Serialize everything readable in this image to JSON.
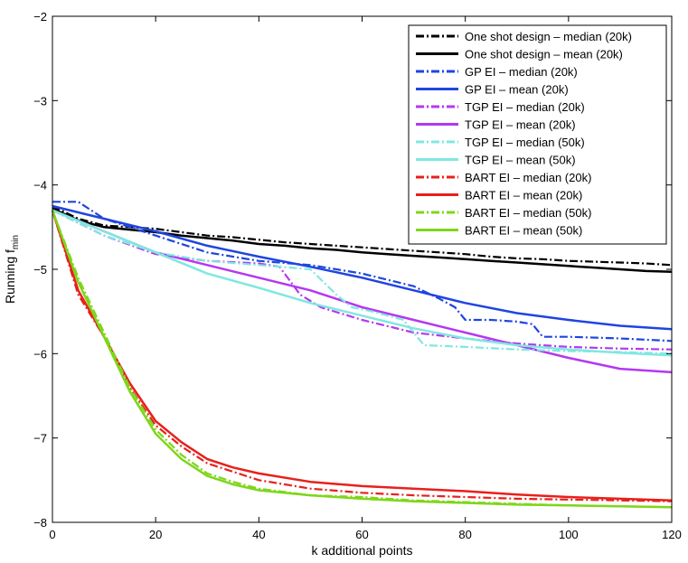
{
  "chart_data": {
    "type": "line",
    "title": "",
    "xlabel": "k additional points",
    "ylabel_main": "Running f",
    "ylabel_sub": "min",
    "xlim": [
      0,
      120
    ],
    "ylim": [
      -8,
      -2
    ],
    "xticks": [
      0,
      20,
      40,
      60,
      80,
      100,
      120
    ],
    "yticks": [
      -8,
      -7,
      -6,
      -5,
      -4,
      -3,
      -2
    ],
    "legend_position": "top-right",
    "series": [
      {
        "name": "One shot design – median (20k)",
        "color": "#000000",
        "style": "dashdot",
        "x": [
          0,
          5,
          10,
          15,
          20,
          25,
          30,
          35,
          40,
          45,
          50,
          55,
          60,
          65,
          70,
          75,
          80,
          85,
          90,
          95,
          100,
          105,
          110,
          115,
          120
        ],
        "y": [
          -4.25,
          -4.4,
          -4.48,
          -4.5,
          -4.52,
          -4.56,
          -4.6,
          -4.62,
          -4.65,
          -4.68,
          -4.7,
          -4.72,
          -4.74,
          -4.76,
          -4.78,
          -4.8,
          -4.82,
          -4.85,
          -4.87,
          -4.88,
          -4.9,
          -4.91,
          -4.92,
          -4.93,
          -4.95
        ]
      },
      {
        "name": "One shot design – mean (20k)",
        "color": "#000000",
        "style": "solid",
        "x": [
          0,
          5,
          10,
          15,
          20,
          25,
          30,
          35,
          40,
          45,
          50,
          55,
          60,
          65,
          70,
          75,
          80,
          85,
          90,
          95,
          100,
          105,
          110,
          115,
          120
        ],
        "y": [
          -4.28,
          -4.42,
          -4.5,
          -4.53,
          -4.56,
          -4.6,
          -4.63,
          -4.66,
          -4.7,
          -4.72,
          -4.75,
          -4.77,
          -4.8,
          -4.82,
          -4.84,
          -4.86,
          -4.88,
          -4.9,
          -4.92,
          -4.94,
          -4.96,
          -4.98,
          -5.0,
          -5.02,
          -5.03
        ]
      },
      {
        "name": "GP EI – median (20k)",
        "color": "#1f45e0",
        "style": "dashdot",
        "x": [
          0,
          2,
          5,
          10,
          20,
          30,
          40,
          50,
          60,
          70,
          75,
          78,
          80,
          85,
          90,
          93,
          95,
          100,
          110,
          120
        ],
        "y": [
          -4.2,
          -4.2,
          -4.2,
          -4.4,
          -4.6,
          -4.8,
          -4.9,
          -4.95,
          -5.05,
          -5.2,
          -5.35,
          -5.45,
          -5.6,
          -5.6,
          -5.62,
          -5.65,
          -5.8,
          -5.8,
          -5.82,
          -5.85
        ]
      },
      {
        "name": "GP EI – mean (20k)",
        "color": "#1f45e0",
        "style": "solid",
        "x": [
          0,
          10,
          20,
          30,
          40,
          50,
          60,
          70,
          80,
          90,
          100,
          110,
          120
        ],
        "y": [
          -4.25,
          -4.4,
          -4.55,
          -4.72,
          -4.85,
          -4.97,
          -5.1,
          -5.25,
          -5.4,
          -5.52,
          -5.6,
          -5.67,
          -5.71
        ]
      },
      {
        "name": "TGP EI – median (20k)",
        "color": "#b537f2",
        "style": "dashdot",
        "x": [
          0,
          10,
          20,
          30,
          40,
          44,
          48,
          52,
          60,
          70,
          80,
          90,
          100,
          110,
          120
        ],
        "y": [
          -4.3,
          -4.6,
          -4.82,
          -4.9,
          -4.93,
          -4.97,
          -5.3,
          -5.45,
          -5.6,
          -5.75,
          -5.82,
          -5.88,
          -5.92,
          -5.94,
          -5.95
        ]
      },
      {
        "name": "TGP EI – mean (20k)",
        "color": "#b537f2",
        "style": "solid",
        "x": [
          0,
          10,
          20,
          30,
          40,
          50,
          60,
          70,
          80,
          90,
          100,
          110,
          120
        ],
        "y": [
          -4.3,
          -4.55,
          -4.8,
          -4.95,
          -5.1,
          -5.25,
          -5.45,
          -5.6,
          -5.75,
          -5.9,
          -6.05,
          -6.18,
          -6.22
        ]
      },
      {
        "name": "TGP EI – median (50k)",
        "color": "#7fe8e0",
        "style": "dashdot",
        "x": [
          0,
          10,
          20,
          30,
          40,
          50,
          55,
          58,
          62,
          68,
          72,
          80,
          90,
          100,
          110,
          120
        ],
        "y": [
          -4.3,
          -4.6,
          -4.8,
          -4.9,
          -4.95,
          -5.0,
          -5.3,
          -5.45,
          -5.5,
          -5.6,
          -5.9,
          -5.92,
          -5.95,
          -5.97,
          -5.98,
          -6.0
        ]
      },
      {
        "name": "TGP EI – mean (50k)",
        "color": "#7fe8e0",
        "style": "solid",
        "x": [
          0,
          10,
          20,
          30,
          40,
          50,
          60,
          70,
          80,
          90,
          100,
          110,
          120
        ],
        "y": [
          -4.3,
          -4.55,
          -4.8,
          -5.05,
          -5.22,
          -5.4,
          -5.55,
          -5.7,
          -5.82,
          -5.9,
          -5.95,
          -5.99,
          -6.02
        ]
      },
      {
        "name": "BART EI – median (20k)",
        "color": "#e8201c",
        "style": "dashdot",
        "x": [
          0,
          5,
          10,
          15,
          20,
          25,
          30,
          35,
          40,
          50,
          60,
          70,
          80,
          90,
          100,
          110,
          120
        ],
        "y": [
          -4.3,
          -5.3,
          -5.8,
          -6.4,
          -6.85,
          -7.1,
          -7.3,
          -7.4,
          -7.5,
          -7.6,
          -7.65,
          -7.68,
          -7.7,
          -7.72,
          -7.73,
          -7.74,
          -7.75
        ]
      },
      {
        "name": "BART EI – mean (20k)",
        "color": "#e8201c",
        "style": "solid",
        "x": [
          0,
          5,
          10,
          15,
          20,
          25,
          30,
          35,
          40,
          50,
          60,
          70,
          80,
          90,
          100,
          110,
          120
        ],
        "y": [
          -4.3,
          -5.25,
          -5.8,
          -6.35,
          -6.8,
          -7.05,
          -7.25,
          -7.35,
          -7.42,
          -7.52,
          -7.57,
          -7.6,
          -7.63,
          -7.67,
          -7.7,
          -7.72,
          -7.74
        ]
      },
      {
        "name": "BART EI – median (50k)",
        "color": "#7ed61a",
        "style": "dashdot",
        "x": [
          0,
          5,
          10,
          15,
          20,
          25,
          30,
          35,
          40,
          50,
          60,
          70,
          80,
          90,
          100,
          110,
          120
        ],
        "y": [
          -4.3,
          -5.1,
          -5.75,
          -6.4,
          -6.9,
          -7.2,
          -7.42,
          -7.52,
          -7.6,
          -7.68,
          -7.7,
          -7.74,
          -7.76,
          -7.78,
          -7.8,
          -7.81,
          -7.82
        ]
      },
      {
        "name": "BART EI – mean (50k)",
        "color": "#7ed61a",
        "style": "solid",
        "x": [
          0,
          5,
          10,
          15,
          20,
          25,
          30,
          35,
          40,
          50,
          60,
          70,
          80,
          90,
          100,
          110,
          120
        ],
        "y": [
          -4.3,
          -5.15,
          -5.8,
          -6.45,
          -6.95,
          -7.25,
          -7.45,
          -7.55,
          -7.62,
          -7.68,
          -7.72,
          -7.75,
          -7.77,
          -7.79,
          -7.8,
          -7.81,
          -7.82
        ]
      }
    ]
  }
}
